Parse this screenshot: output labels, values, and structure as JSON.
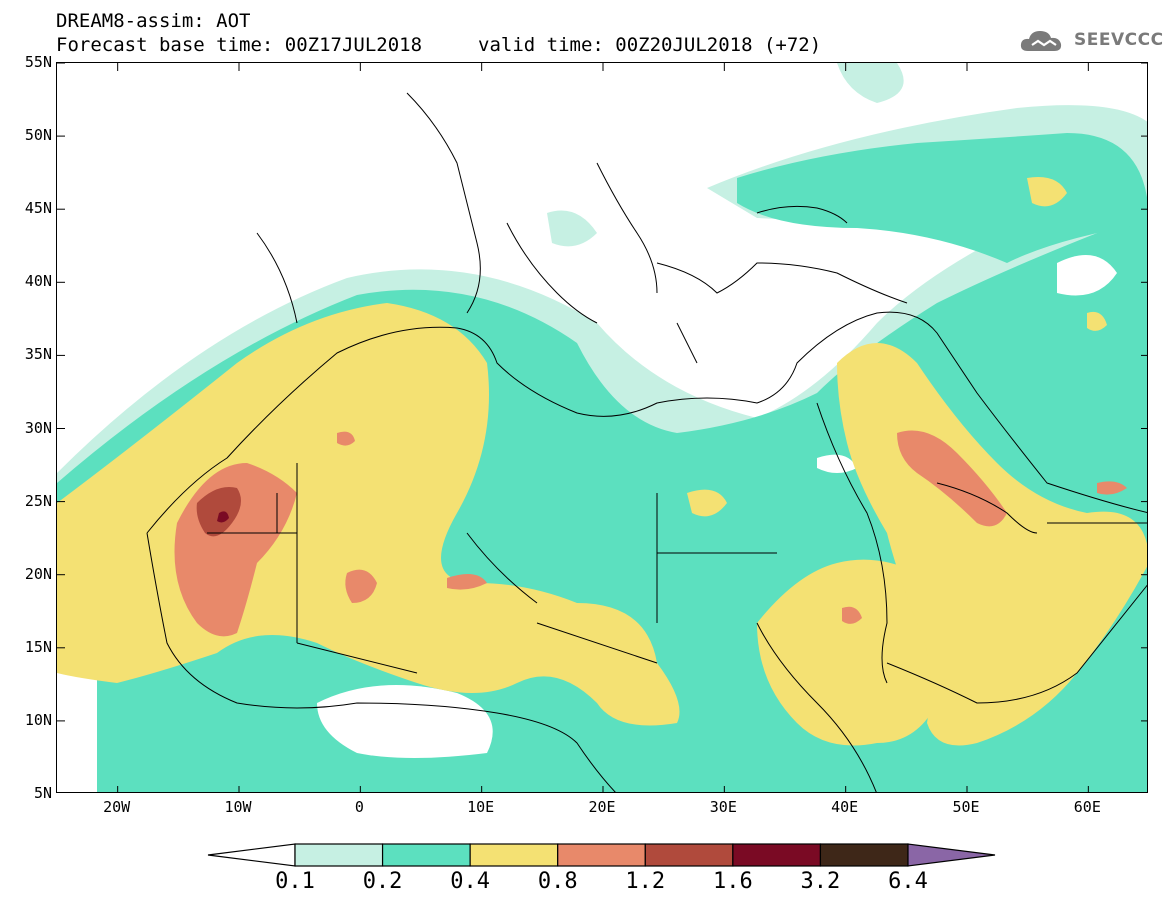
{
  "header": {
    "model_line": "DREAM8-assim: AOT",
    "base_time_line": "Forecast base time: 00Z17JUL2018",
    "valid_time_line": "valid time: 00Z20JUL2018 (+72)",
    "logo_text": "SEEVCCC",
    "logo_icon": "cloud-icon"
  },
  "map": {
    "lon_range": [
      -25,
      65
    ],
    "lat_range": [
      5,
      55
    ],
    "lat_ticks": [
      "55N",
      "50N",
      "45N",
      "40N",
      "35N",
      "30N",
      "25N",
      "20N",
      "15N",
      "10N",
      "5N"
    ],
    "lon_ticks": [
      "20W",
      "10W",
      "0",
      "10E",
      "20E",
      "30E",
      "40E",
      "50E",
      "60E"
    ],
    "variable": "Aerosol Optical Thickness"
  },
  "colorbar": {
    "levels": [
      "0.1",
      "0.2",
      "0.4",
      "0.8",
      "1.2",
      "1.6",
      "3.2",
      "6.4"
    ],
    "colors": {
      "lt_0.1": "#ffffff",
      "0.1-0.2": "#c6f0e3",
      "0.2-0.4": "#5ce0bf",
      "0.4-0.8": "#f4e173",
      "0.8-1.2": "#e8896a",
      "1.2-1.6": "#b04a3c",
      "1.6-3.2": "#7a0a24",
      "3.2-6.4": "#3e2718",
      "gt_6.4": "#8a66a6"
    }
  }
}
